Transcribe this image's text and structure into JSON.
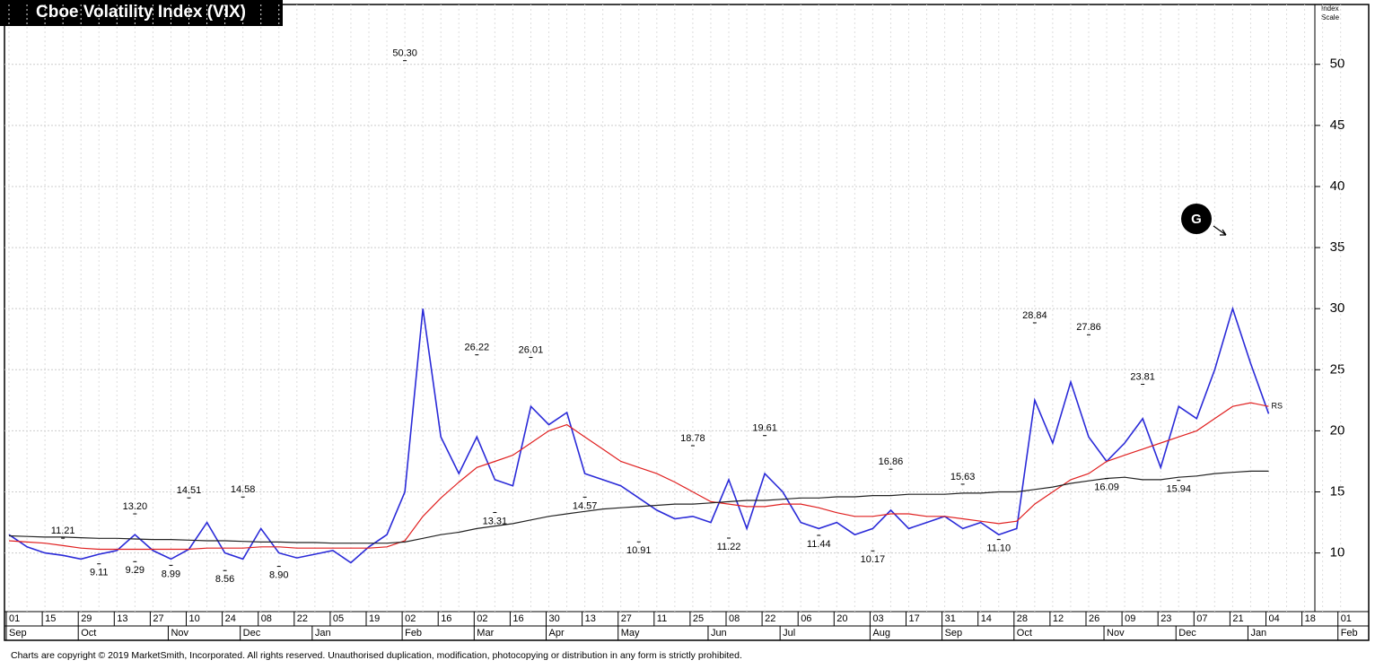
{
  "chart_data": {
    "type": "line",
    "title": "Cboe Volatility Index (VIX)",
    "y_axis_label": "Index Scale",
    "footer": "Charts are copyright © 2019 MarketSmith, Incorporated. All rights reserved. Unauthorised duplication, modification, photocopying or distribution in any form is strictly prohibited.",
    "categories": [
      "01",
      null,
      "15",
      null,
      "29",
      null,
      "13",
      null,
      "27",
      null,
      "10",
      null,
      "24",
      null,
      "08",
      null,
      "22",
      null,
      "05",
      null,
      "19",
      null,
      "02",
      null,
      "16",
      null,
      "02",
      null,
      "16",
      null,
      "30",
      null,
      "13",
      null,
      "27",
      null,
      "11",
      null,
      "25",
      null,
      "08",
      null,
      "22",
      null,
      "06",
      null,
      "20",
      null,
      "03",
      null,
      "17",
      null,
      "31",
      null,
      "14",
      null,
      "28",
      null,
      "12",
      null,
      "26",
      null,
      "09",
      null,
      "23",
      null,
      "07",
      null,
      "21",
      null,
      "04",
      null,
      "18",
      null,
      "01"
    ],
    "months": [
      "Sep",
      null,
      null,
      null,
      "Oct",
      null,
      null,
      null,
      null,
      "Nov",
      null,
      null,
      null,
      "Dec",
      null,
      null,
      null,
      "Jan",
      null,
      null,
      null,
      null,
      "Feb",
      null,
      null,
      null,
      "Mar",
      null,
      null,
      null,
      "Apr",
      null,
      null,
      null,
      "May",
      null,
      null,
      null,
      null,
      "Jun",
      null,
      null,
      null,
      "Jul",
      null,
      null,
      null,
      null,
      "Aug",
      null,
      null,
      null,
      "Sep",
      null,
      null,
      null,
      "Oct",
      null,
      null,
      null,
      null,
      "Nov",
      null,
      null,
      null,
      "Dec",
      null,
      null,
      null,
      "Jan",
      null,
      null,
      null,
      null,
      "Feb"
    ],
    "series": [
      {
        "color": "#2a2ad8",
        "values": [
          11.5,
          10.5,
          10.0,
          9.8,
          9.5,
          9.9,
          10.2,
          11.5,
          10.2,
          9.5,
          10.3,
          12.5,
          10.0,
          9.5,
          12.0,
          10.0,
          9.6,
          9.9,
          10.2,
          9.2,
          10.5,
          11.5,
          15.0,
          30.0,
          19.5,
          16.5,
          19.5,
          16.0,
          15.5,
          22.0,
          20.5,
          21.5,
          16.5,
          16.0,
          15.5,
          14.5,
          13.5,
          12.8,
          13.0,
          12.5,
          16.0,
          12.0,
          16.5,
          15.0,
          12.5,
          12.0,
          12.5,
          11.5,
          12.0,
          13.5,
          12.0,
          12.5,
          13.0,
          12.0,
          12.5,
          11.5,
          12.0,
          22.5,
          19.0,
          24.0,
          19.5,
          17.5,
          19.0,
          21.0,
          17.0,
          22.0,
          21.0,
          25.0,
          30.0,
          25.5,
          21.4,
          null,
          null,
          null,
          null
        ]
      },
      {
        "color": "#e02020",
        "values": [
          11.0,
          10.9,
          10.8,
          10.6,
          10.4,
          10.3,
          10.3,
          10.3,
          10.3,
          10.3,
          10.3,
          10.4,
          10.4,
          10.4,
          10.5,
          10.5,
          10.4,
          10.4,
          10.4,
          10.4,
          10.4,
          10.5,
          11.0,
          13.0,
          14.5,
          15.8,
          17.0,
          17.5,
          18.0,
          19.0,
          20.0,
          20.5,
          19.5,
          18.5,
          17.5,
          17.0,
          16.5,
          15.8,
          15.0,
          14.2,
          14.0,
          13.8,
          13.8,
          14.0,
          14.0,
          13.7,
          13.3,
          13.0,
          13.0,
          13.2,
          13.2,
          13.0,
          13.0,
          12.8,
          12.6,
          12.4,
          12.6,
          14.0,
          15.0,
          16.0,
          16.5,
          17.5,
          18.0,
          18.5,
          19.0,
          19.5,
          20.0,
          21.0,
          22.0,
          22.3,
          22.0,
          null,
          null,
          null,
          null
        ]
      },
      {
        "color": "#222222",
        "values": [
          11.4,
          11.35,
          11.3,
          11.3,
          11.25,
          11.2,
          11.2,
          11.15,
          11.1,
          11.1,
          11.05,
          11.0,
          11.0,
          10.95,
          10.9,
          10.9,
          10.85,
          10.85,
          10.8,
          10.8,
          10.8,
          10.8,
          10.9,
          11.2,
          11.5,
          11.7,
          12.0,
          12.2,
          12.4,
          12.7,
          13.0,
          13.2,
          13.4,
          13.6,
          13.7,
          13.8,
          13.9,
          14.0,
          14.0,
          14.1,
          14.2,
          14.3,
          14.3,
          14.4,
          14.5,
          14.5,
          14.6,
          14.6,
          14.7,
          14.7,
          14.8,
          14.8,
          14.8,
          14.9,
          14.9,
          15.0,
          15.0,
          15.2,
          15.4,
          15.7,
          15.9,
          16.1,
          16.2,
          16.0,
          16.0,
          16.2,
          16.3,
          16.5,
          16.6,
          16.7,
          16.7,
          null,
          null,
          null,
          null
        ]
      }
    ],
    "annotations": [
      {
        "text": "11.21",
        "value": 11.21,
        "at": 3,
        "position": "above"
      },
      {
        "text": "9.11",
        "value": 9.11,
        "at": 5,
        "position": "below"
      },
      {
        "text": "13.20",
        "value": 13.2,
        "at": 7,
        "position": "above"
      },
      {
        "text": "9.29",
        "value": 9.29,
        "at": 7,
        "position": "below"
      },
      {
        "text": "8.99",
        "value": 8.99,
        "at": 9,
        "position": "below"
      },
      {
        "text": "14.51",
        "value": 14.51,
        "at": 10,
        "position": "above"
      },
      {
        "text": "8.56",
        "value": 8.56,
        "at": 12,
        "position": "below"
      },
      {
        "text": "14.58",
        "value": 14.58,
        "at": 13,
        "position": "above"
      },
      {
        "text": "8.90",
        "value": 8.9,
        "at": 15,
        "position": "below"
      },
      {
        "text": "50.30",
        "value": 50.3,
        "at": 22,
        "position": "above"
      },
      {
        "text": "26.22",
        "value": 26.22,
        "at": 26,
        "position": "above"
      },
      {
        "text": "13.31",
        "value": 13.31,
        "at": 27,
        "position": "below"
      },
      {
        "text": "26.01",
        "value": 26.01,
        "at": 29,
        "position": "above"
      },
      {
        "text": "14.57",
        "value": 14.57,
        "at": 32,
        "position": "below"
      },
      {
        "text": "10.91",
        "value": 10.91,
        "at": 35,
        "position": "below"
      },
      {
        "text": "18.78",
        "value": 18.78,
        "at": 38,
        "position": "above"
      },
      {
        "text": "11.22",
        "value": 11.22,
        "at": 40,
        "position": "below"
      },
      {
        "text": "19.61",
        "value": 19.61,
        "at": 42,
        "position": "above"
      },
      {
        "text": "11.44",
        "value": 11.44,
        "at": 45,
        "position": "below"
      },
      {
        "text": "10.17",
        "value": 10.17,
        "at": 48,
        "position": "below"
      },
      {
        "text": "16.86",
        "value": 16.86,
        "at": 49,
        "position": "above"
      },
      {
        "text": "15.63",
        "value": 15.63,
        "at": 53,
        "position": "above"
      },
      {
        "text": "11.10",
        "value": 11.1,
        "at": 55,
        "position": "below"
      },
      {
        "text": "28.84",
        "value": 28.84,
        "at": 57,
        "position": "above"
      },
      {
        "text": "27.86",
        "value": 27.86,
        "at": 60,
        "position": "above"
      },
      {
        "text": "16.09",
        "value": 16.09,
        "at": 61,
        "position": "below"
      },
      {
        "text": "23.81",
        "value": 23.81,
        "at": 63,
        "position": "above"
      },
      {
        "text": "15.94",
        "value": 15.94,
        "at": 65,
        "position": "below"
      }
    ],
    "end_label": "RS",
    "marker": "G",
    "ylim": [
      5.2,
      54.9
    ],
    "yticks": [
      10,
      15,
      20,
      25,
      30,
      35,
      40,
      45,
      50
    ],
    "grid": true
  }
}
